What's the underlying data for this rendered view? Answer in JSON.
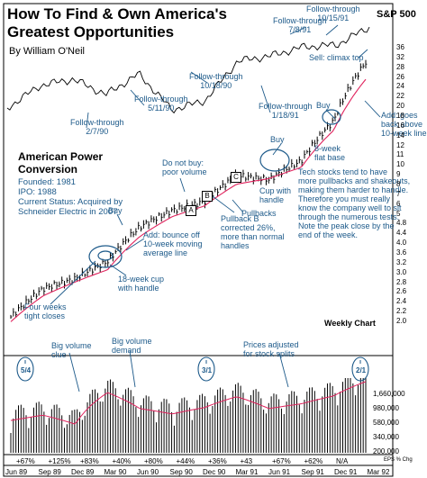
{
  "title": "How To Find & Own America's Greatest Opportunities",
  "byline": "By William O'Neil",
  "sp_label": "S&P 500",
  "company": {
    "name": "American Power Conversion",
    "info": [
      "Founded: 1981",
      "IPO: 1988",
      "Current Status: Acquired by",
      "Schneider Electric in 2007"
    ]
  },
  "weekly_label": "Weekly Chart",
  "annotations": {
    "ft_1": [
      "Follow-through",
      "2/7/90"
    ],
    "ft_2": [
      "Follow-through",
      "5/11/90"
    ],
    "ft_3": [
      "Follow-through",
      "10/18/90"
    ],
    "ft_4": [
      "Follow-through",
      "1/18/91"
    ],
    "ft_5": [
      "Follow-through",
      "7/8/91"
    ],
    "ft_6": [
      "Follow-through",
      "10/15/91"
    ],
    "climax": "Sell: climax top",
    "buy_1": "Buy",
    "buy_2": "Buy",
    "buy_3": "Buy",
    "add_back": [
      "Add: goes",
      "back above",
      "10-week line"
    ],
    "not_buy": [
      "Do not buy:",
      "poor volume"
    ],
    "pullbacks": "Pullbacks",
    "flat_base": [
      "8-week",
      "flat base"
    ],
    "cup_handle": [
      "Cup with",
      "handle"
    ],
    "tech_note": [
      "Tech stocks tend to have",
      "more pullbacks and shakeouts,",
      "making them harder to handle.",
      "Therefore you must really",
      "know the company well to sit",
      "through the numerous tests.",
      "Note the peak close by the",
      "end of the week."
    ],
    "pullback_b": [
      "Pullback B",
      "corrected 26%,",
      "more than normal",
      "handles"
    ],
    "add_bounce": [
      "Add: bounce off",
      "10-week moving",
      "average line"
    ],
    "cup18": [
      "18-week cup",
      "with handle"
    ],
    "tight": [
      "Four weeks",
      "tight closes"
    ],
    "vol_clue": [
      "Big volume",
      "clue"
    ],
    "vol_demand": [
      "Big volume",
      "demand"
    ],
    "splits_note": [
      "Prices adjusted",
      "for stock splits"
    ],
    "box_a": "A",
    "box_b": "B",
    "box_c": "C"
  },
  "splits": [
    "5/4",
    "3/1",
    "2/1"
  ],
  "eps_label": "EPS % Chg",
  "eps_changes": [
    "+67%",
    "+125%",
    "+83%",
    "+40%",
    "+80%",
    "+44%",
    "+36%",
    "+43",
    "+67%",
    "+62%",
    "N/A"
  ],
  "dates": [
    "Jun 89",
    "Sep 89",
    "Dec 89",
    "Mar 90",
    "Jun 90",
    "Sep 90",
    "Dec 90",
    "Mar 91",
    "Jun 91",
    "Sep 91",
    "Dec 91",
    "Mar 92"
  ],
  "y_ticks": [
    "36",
    "32",
    "28",
    "26",
    "24",
    "22",
    "20",
    "18",
    "16",
    "14",
    "12",
    "11",
    "10",
    "9",
    "8",
    "7",
    "6",
    "5",
    "4.8",
    "4.4",
    "4.0",
    "3.6",
    "3.2",
    "3.0",
    "2.8",
    "2.6",
    "2.4",
    "2.2",
    "2.0"
  ],
  "vol_ticks": [
    "1,660,000",
    "980,000",
    "580,000",
    "340,000",
    "200,000"
  ],
  "colors": {
    "accent": "#1d5a8a",
    "moving_average": "#e0245e",
    "bar": "#000000"
  },
  "chart_data": [
    {
      "type": "line",
      "title": "S&P 500",
      "x": [
        "Jun 89",
        "Sep 89",
        "Dec 89",
        "Mar 90",
        "Jun 90",
        "Sep 90",
        "Dec 90",
        "Mar 91",
        "Jun 91",
        "Sep 91",
        "Dec 91",
        "Mar 92"
      ],
      "values": [
        320,
        345,
        352,
        335,
        358,
        318,
        328,
        372,
        378,
        388,
        390,
        410
      ]
    },
    {
      "type": "bar",
      "title": "American Power Conversion weekly price",
      "x": [
        "Jun 89",
        "Sep 89",
        "Dec 89",
        "Mar 90",
        "Jun 90",
        "Sep 90",
        "Dec 90",
        "Mar 91",
        "Jun 91",
        "Sep 91",
        "Dec 91",
        "Mar 92"
      ],
      "values": [
        2.0,
        2.7,
        3.0,
        3.6,
        5.2,
        6.2,
        6.8,
        9.0,
        8.6,
        10.5,
        16.0,
        30.0
      ],
      "moving_average": [
        1.9,
        2.5,
        2.9,
        3.3,
        4.7,
        5.8,
        6.5,
        8.2,
        8.7,
        9.8,
        14.5,
        25.0
      ],
      "ylim": [
        2.0,
        36
      ],
      "scale": "log"
    },
    {
      "type": "bar",
      "title": "Weekly volume",
      "x": [
        "Jun 89",
        "Sep 89",
        "Dec 89",
        "Mar 90",
        "Jun 90",
        "Sep 90",
        "Dec 90",
        "Mar 91",
        "Jun 91",
        "Sep 91",
        "Dec 91",
        "Mar 92"
      ],
      "values": [
        500000,
        580000,
        450000,
        1100000,
        700000,
        600000,
        720000,
        980000,
        700000,
        800000,
        1000000,
        1500000
      ],
      "ylim": [
        200000,
        1660000
      ]
    }
  ]
}
